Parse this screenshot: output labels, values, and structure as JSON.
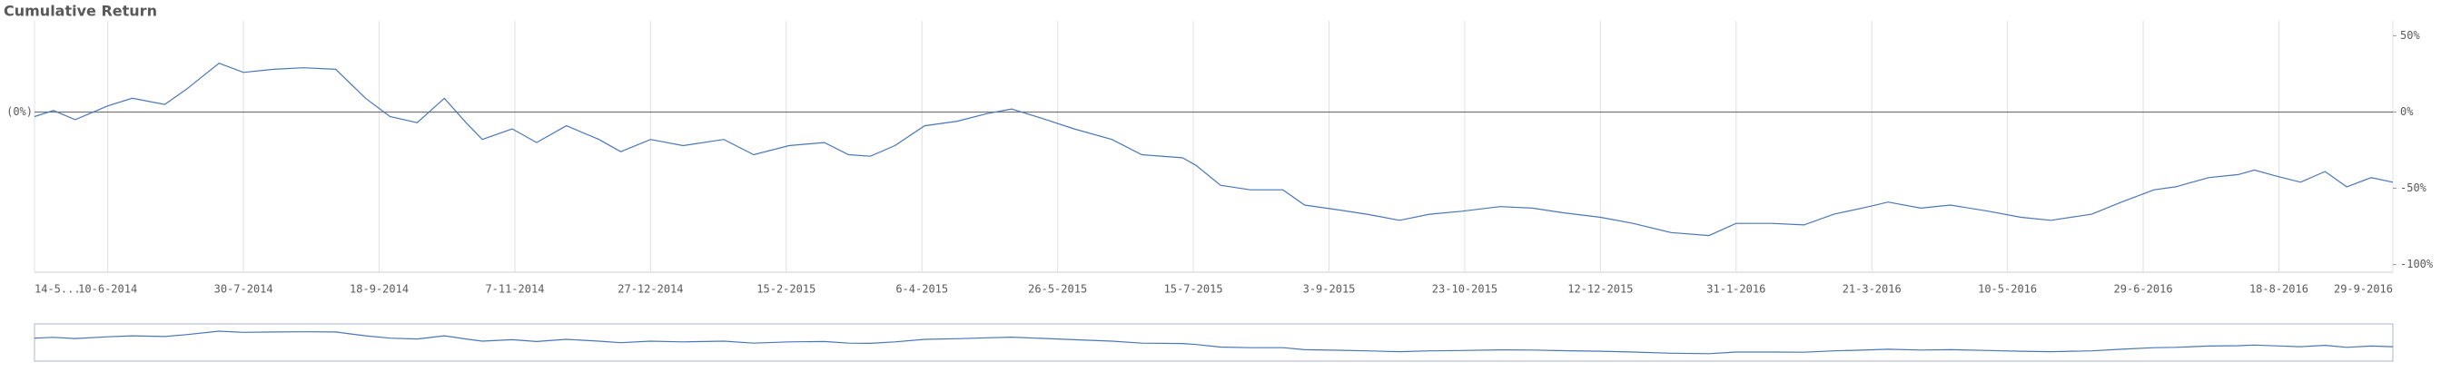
{
  "chart_data": {
    "type": "line",
    "title": "Cumulative Return",
    "x": [
      "2014-05-14",
      "2014-05-21",
      "2014-05-29",
      "2014-06-10",
      "2014-06-19",
      "2014-07-01",
      "2014-07-09",
      "2014-07-21",
      "2014-07-30",
      "2014-08-10",
      "2014-08-21",
      "2014-09-02",
      "2014-09-13",
      "2014-09-22",
      "2014-10-02",
      "2014-10-12",
      "2014-10-20",
      "2014-10-26",
      "2014-11-06",
      "2014-11-15",
      "2014-11-26",
      "2014-12-08",
      "2014-12-16",
      "2014-12-27",
      "2015-01-08",
      "2015-01-23",
      "2015-02-03",
      "2015-02-16",
      "2015-03-01",
      "2015-03-10",
      "2015-03-18",
      "2015-03-27",
      "2015-04-07",
      "2015-04-19",
      "2015-04-30",
      "2015-05-09",
      "2015-05-20",
      "2015-06-01",
      "2015-06-15",
      "2015-06-26",
      "2015-07-11",
      "2015-07-16",
      "2015-07-25",
      "2015-08-05",
      "2015-08-17",
      "2015-08-25",
      "2015-09-06",
      "2015-09-17",
      "2015-09-29",
      "2015-10-10",
      "2015-10-22",
      "2015-11-05",
      "2015-11-17",
      "2015-11-28",
      "2015-12-12",
      "2015-12-24",
      "2016-01-07",
      "2016-01-21",
      "2016-01-31",
      "2016-02-13",
      "2016-02-25",
      "2016-03-07",
      "2016-03-20",
      "2016-03-27",
      "2016-04-08",
      "2016-04-19",
      "2016-05-03",
      "2016-05-15",
      "2016-05-26",
      "2016-06-10",
      "2016-06-21",
      "2016-07-03",
      "2016-07-11",
      "2016-07-23",
      "2016-08-03",
      "2016-08-09",
      "2016-08-17",
      "2016-08-26",
      "2016-09-04",
      "2016-09-12",
      "2016-09-21",
      "2016-09-29"
    ],
    "series": [
      {
        "name": "Cumulative Return",
        "color": "#4a76b8",
        "values": [
          -3,
          1,
          -5,
          4,
          9,
          5,
          15,
          32,
          26,
          28,
          29,
          28,
          9,
          -3,
          -7,
          9,
          -7,
          -18,
          -11,
          -20,
          -9,
          -18,
          -26,
          -18,
          -22,
          -18,
          -28,
          -22,
          -20,
          -28,
          -29,
          -22,
          -9,
          -6,
          -1,
          2,
          -4,
          -11,
          -18,
          -28,
          -30,
          -35,
          -48,
          -51,
          -51,
          -61,
          -64,
          -67,
          -71,
          -67,
          -65,
          -62,
          -63,
          -66,
          -69,
          -73,
          -79,
          -81,
          -73,
          -73,
          -74,
          -67,
          -62,
          -59,
          -63,
          -61,
          -65,
          -69,
          -71,
          -67,
          -59,
          -51,
          -49,
          -43,
          -41,
          -38,
          -42,
          -46,
          -39,
          -49,
          -43,
          -46
        ]
      }
    ],
    "xlim": [
      "2014-05-14",
      "2016-09-29"
    ],
    "xticks": [
      {
        "value": "2014-05-14",
        "label": "14-5..."
      },
      {
        "value": "2014-06-10",
        "label": "10-6-2014"
      },
      {
        "value": "2014-07-30",
        "label": "30-7-2014"
      },
      {
        "value": "2014-09-18",
        "label": "18-9-2014"
      },
      {
        "value": "2014-11-07",
        "label": "7-11-2014"
      },
      {
        "value": "2014-12-27",
        "label": "27-12-2014"
      },
      {
        "value": "2015-02-15",
        "label": "15-2-2015"
      },
      {
        "value": "2015-04-06",
        "label": "6-4-2015"
      },
      {
        "value": "2015-05-26",
        "label": "26-5-2015"
      },
      {
        "value": "2015-07-15",
        "label": "15-7-2015"
      },
      {
        "value": "2015-09-03",
        "label": "3-9-2015"
      },
      {
        "value": "2015-10-23",
        "label": "23-10-2015"
      },
      {
        "value": "2015-12-12",
        "label": "12-12-2015"
      },
      {
        "value": "2016-01-31",
        "label": "31-1-2016"
      },
      {
        "value": "2016-03-21",
        "label": "21-3-2016"
      },
      {
        "value": "2016-05-10",
        "label": "10-5-2016"
      },
      {
        "value": "2016-06-29",
        "label": "29-6-2016"
      },
      {
        "value": "2016-08-18",
        "label": "18-8-2016"
      },
      {
        "value": "2016-09-29",
        "label": "29-9-2016"
      }
    ],
    "ylim": [
      -105,
      55
    ],
    "yticks": [
      {
        "value": 50,
        "label": "50%"
      },
      {
        "value": 0,
        "label": "0%"
      },
      {
        "value": -50,
        "label": "-50%"
      },
      {
        "value": -100,
        "label": "-100%"
      }
    ],
    "reference_line": {
      "value": 0,
      "label": "(0%)"
    },
    "grid": true
  }
}
